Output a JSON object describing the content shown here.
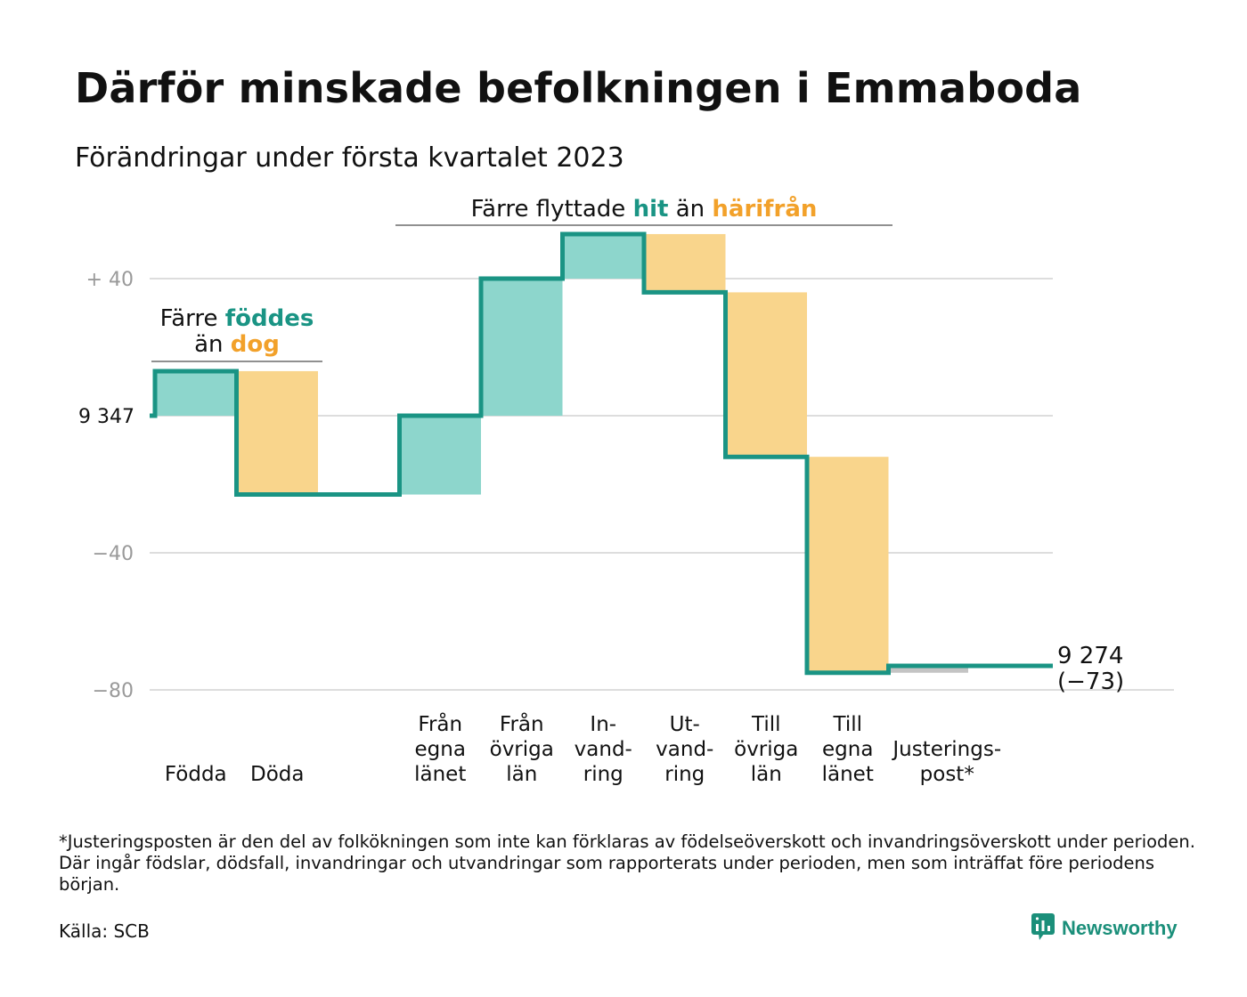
{
  "title": "Därför minskade befolkningen i Emmaboda",
  "subtitle": "Förändringar under första kvartalet 2023",
  "colors": {
    "teal_line": "#1a9484",
    "teal_fill": "#8dd6cc",
    "orange_fill": "#f9d58c",
    "orange_text": "#f2a12a",
    "teal_text": "#1a9484",
    "grid": "#dddddd",
    "adjust": "#c4c4c4"
  },
  "annotations": {
    "births": {
      "line1_prefix": "Färre ",
      "line1_highlight": "föddes",
      "line2_prefix": "än ",
      "line2_highlight": "dog"
    },
    "migration": {
      "prefix": "Färre flyttade ",
      "highlight_teal": "hit",
      "middle": " än ",
      "highlight_orange": "härifrån"
    }
  },
  "chart_data": {
    "type": "waterfall",
    "baseline": 9347,
    "baseline_label": "9 347",
    "y_ticks": [
      {
        "value": 40,
        "label": "+ 40"
      },
      {
        "value": 0,
        "label": "9 347"
      },
      {
        "value": -40,
        "label": "−40"
      },
      {
        "value": -80,
        "label": "−80"
      }
    ],
    "ylim": [
      -80,
      40
    ],
    "steps": [
      {
        "label": "Födda",
        "label_lines": [
          "Födda"
        ],
        "value": 13,
        "kind": "in"
      },
      {
        "label": "Döda",
        "label_lines": [
          "Döda"
        ],
        "value": -36,
        "kind": "out"
      },
      {
        "label": "",
        "label_lines": [],
        "value": 0,
        "kind": "gap"
      },
      {
        "label": "Från egna länet",
        "label_lines": [
          "Från",
          "egna",
          "länet"
        ],
        "value": 23,
        "kind": "in"
      },
      {
        "label": "Från övriga län",
        "label_lines": [
          "Från",
          "övriga",
          "län"
        ],
        "value": 40,
        "kind": "in"
      },
      {
        "label": "In-vandring",
        "label_lines": [
          "In-",
          "vand-",
          "ring"
        ],
        "value": 13,
        "kind": "in"
      },
      {
        "label": "Ut-vandring",
        "label_lines": [
          "Ut-",
          "vand-",
          "ring"
        ],
        "value": -17,
        "kind": "out"
      },
      {
        "label": "Till övriga län",
        "label_lines": [
          "Till",
          "övriga",
          "län"
        ],
        "value": -48,
        "kind": "out"
      },
      {
        "label": "Till egna länet",
        "label_lines": [
          "Till",
          "egna",
          "länet"
        ],
        "value": -63,
        "kind": "out"
      },
      {
        "label": "Justerings-post*",
        "label_lines": [
          "Justerings-",
          "post*"
        ],
        "value": 2,
        "kind": "adjust"
      }
    ],
    "end_value_label": "9 274",
    "end_change_label": "(−73)"
  },
  "footnote": "*Justeringsposten är den del av folkökningen som inte kan förklaras av födelseöverskott och invandringsöverskott under perioden. Där ingår födslar, dödsfall, invandringar och utvandringar som rapporterats under perioden, men som inträffat före periodens början.",
  "source": "Källa: SCB",
  "brand": {
    "name": "Newsworthy",
    "icon": "newsworthy-logo-icon"
  }
}
